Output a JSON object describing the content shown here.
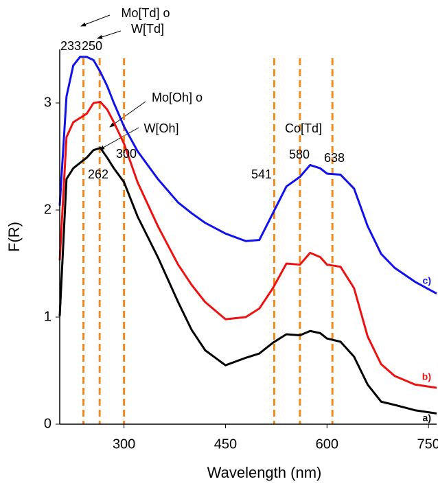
{
  "chart_data": {
    "type": "line",
    "x_label": "Wavelength (nm)",
    "y_label": "F(R)",
    "x": [
      205,
      215,
      225,
      235,
      245,
      255,
      265,
      275,
      285,
      300,
      320,
      350,
      380,
      400,
      420,
      450,
      480,
      500,
      520,
      540,
      560,
      575,
      590,
      600,
      620,
      640,
      660,
      680,
      700,
      730,
      762
    ],
    "series": [
      {
        "name": "a)",
        "color": "#000000",
        "values": [
          1.01,
          2.29,
          2.39,
          2.44,
          2.49,
          2.56,
          2.58,
          2.49,
          2.39,
          2.26,
          1.94,
          1.56,
          1.14,
          0.88,
          0.69,
          0.55,
          0.62,
          0.66,
          0.76,
          0.84,
          0.83,
          0.87,
          0.85,
          0.8,
          0.77,
          0.63,
          0.37,
          0.21,
          0.18,
          0.13,
          0.1
        ]
      },
      {
        "name": "b)",
        "color": "#ee1111",
        "values": [
          1.53,
          2.68,
          2.82,
          2.86,
          2.9,
          3.0,
          3.01,
          2.94,
          2.82,
          2.62,
          2.26,
          1.85,
          1.49,
          1.3,
          1.14,
          0.98,
          1.0,
          1.08,
          1.27,
          1.5,
          1.49,
          1.6,
          1.56,
          1.49,
          1.47,
          1.27,
          0.82,
          0.56,
          0.45,
          0.37,
          0.34
        ]
      },
      {
        "name": "c)",
        "color": "#1111ee",
        "values": [
          2.04,
          3.06,
          3.35,
          3.43,
          3.43,
          3.4,
          3.29,
          3.16,
          3.0,
          2.78,
          2.55,
          2.29,
          2.07,
          1.97,
          1.88,
          1.78,
          1.71,
          1.72,
          1.97,
          2.22,
          2.31,
          2.42,
          2.39,
          2.34,
          2.33,
          2.2,
          1.85,
          1.59,
          1.46,
          1.33,
          1.22
        ]
      }
    ],
    "vlines": [
      240,
      264,
      300,
      522,
      560,
      608
    ],
    "vline_color": "#f28a1e",
    "annotations": [
      "Mo[Td] o",
      "W[Td]",
      "Mo[Oh] o",
      "W[Oh]",
      "Co[Td]",
      "233",
      "250",
      "262",
      "300",
      "541",
      "580",
      "638"
    ],
    "xlim": [
      205,
      762
    ],
    "xticks": [
      300,
      450,
      600,
      750
    ],
    "ylim": [
      0,
      3.5
    ],
    "yticks": [
      0,
      1,
      2,
      3
    ]
  }
}
